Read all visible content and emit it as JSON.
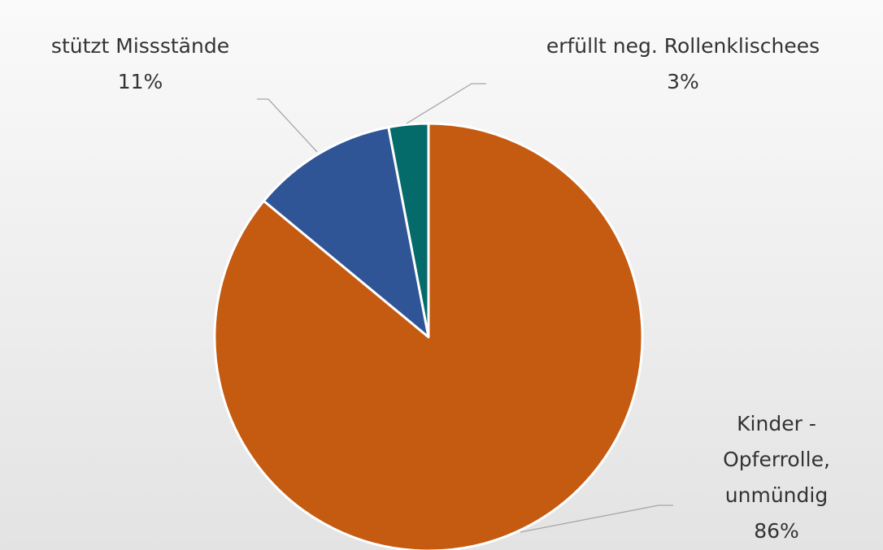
{
  "chart_data": {
    "type": "pie",
    "categories": [
      "Kinder - Opferrolle, unmündig",
      "stützt Missstände",
      "erfüllt neg. Rollenklischees"
    ],
    "values": [
      86,
      11,
      3
    ],
    "value_labels": [
      "86%",
      "11%",
      "3%"
    ],
    "colors": [
      "#c55a11",
      "#2f5597",
      "#046a6a"
    ]
  }
}
